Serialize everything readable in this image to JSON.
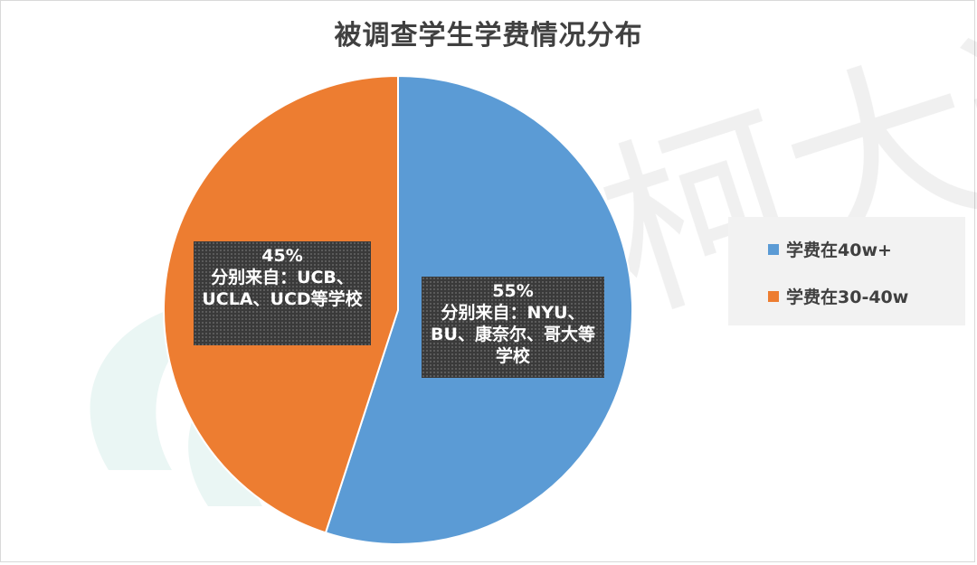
{
  "chart_data": {
    "type": "pie",
    "title": "被调查学生学费情况分布",
    "slices": [
      {
        "name": "学费在40w+",
        "value": 55,
        "label": "55%",
        "note": "分别来自：NYU、BU、康奈尔、哥大等学校",
        "color": "#5b9bd5"
      },
      {
        "name": "学费在30-40w",
        "value": 45,
        "label": "45%",
        "note": "分别来自：UCB、UCLA、UCD等学校",
        "color": "#ed7d31"
      }
    ],
    "start_angle": "12 o'clock",
    "direction": "clockwise",
    "legend_position": "right"
  },
  "watermark": {
    "text": "微柯大道"
  }
}
